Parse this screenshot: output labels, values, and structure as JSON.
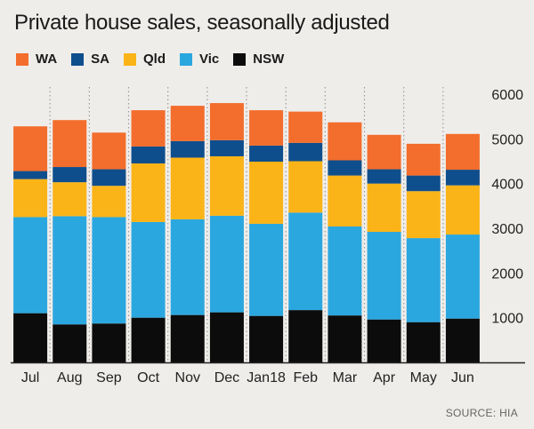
{
  "chart_data": {
    "type": "bar",
    "stacked": true,
    "title": "Private house sales, seasonally adjusted",
    "categories": [
      "Jul",
      "Aug",
      "Sep",
      "Oct",
      "Nov",
      "Dec",
      "Jan18",
      "Feb",
      "Mar",
      "Apr",
      "May",
      "Jun"
    ],
    "series": [
      {
        "name": "NSW",
        "color": "#0c0c0c",
        "values": [
          1100,
          850,
          870,
          1000,
          1060,
          1120,
          1040,
          1170,
          1050,
          960,
          900,
          980
        ]
      },
      {
        "name": "Vic",
        "color": "#2ba7df",
        "values": [
          2150,
          2420,
          2380,
          2140,
          2140,
          2160,
          2060,
          2180,
          1990,
          1960,
          1880,
          1880
        ]
      },
      {
        "name": "Qld",
        "color": "#fbb418",
        "values": [
          850,
          760,
          700,
          1310,
          1380,
          1330,
          1390,
          1150,
          1140,
          1080,
          1050,
          1100
        ]
      },
      {
        "name": "SA",
        "color": "#0f4e8c",
        "values": [
          180,
          340,
          370,
          380,
          370,
          360,
          360,
          410,
          340,
          320,
          350,
          350
        ]
      },
      {
        "name": "WA",
        "color": "#f36d2c",
        "values": [
          1000,
          1050,
          820,
          810,
          790,
          830,
          790,
          700,
          850,
          770,
          710,
          800
        ]
      }
    ],
    "legend_order": [
      "WA",
      "SA",
      "Qld",
      "Vic",
      "NSW"
    ],
    "xlabel": "",
    "ylabel": "",
    "ylim": [
      0,
      6000
    ],
    "yticks": [
      1000,
      2000,
      3000,
      4000,
      5000,
      6000
    ],
    "grid": "dotted-vertical",
    "legend_position": "top-left"
  },
  "source": "SOURCE: HIA"
}
